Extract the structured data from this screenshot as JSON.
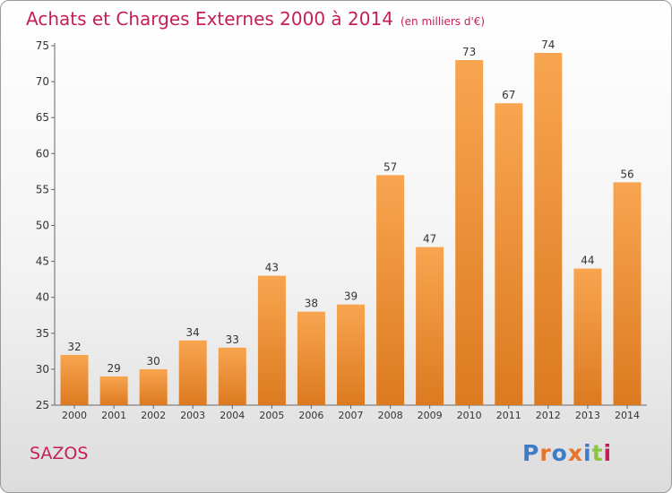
{
  "header": {
    "title": "Achats et Charges Externes 2000 à 2014",
    "subtitle": "(en milliers d'€)"
  },
  "footer": {
    "commune": "SAZOS",
    "logo_text": "Proxiti",
    "logo_colors": [
      "#3d7cc9",
      "#e8732a",
      "#3d7cc9",
      "#e8732a",
      "#3d7cc9",
      "#8cc63f",
      "#c41e5b"
    ]
  },
  "colors": {
    "bar_top": "#f8a550",
    "bar_bottom": "#dc7a20",
    "title": "#c41e5b"
  },
  "chart_data": {
    "type": "bar",
    "title": "Achats et Charges Externes 2000 à 2014",
    "subtitle": "(en milliers d'€)",
    "xlabel": "",
    "ylabel": "",
    "categories": [
      "2000",
      "2001",
      "2002",
      "2003",
      "2004",
      "2005",
      "2006",
      "2007",
      "2008",
      "2009",
      "2010",
      "2011",
      "2012",
      "2013",
      "2014"
    ],
    "values": [
      32,
      29,
      30,
      34,
      33,
      43,
      38,
      39,
      57,
      47,
      73,
      67,
      74,
      44,
      56
    ],
    "ylim": [
      25,
      75
    ],
    "yticks": [
      25,
      30,
      35,
      40,
      45,
      50,
      55,
      60,
      65,
      70,
      75
    ],
    "grid": false,
    "data_labels": true
  }
}
